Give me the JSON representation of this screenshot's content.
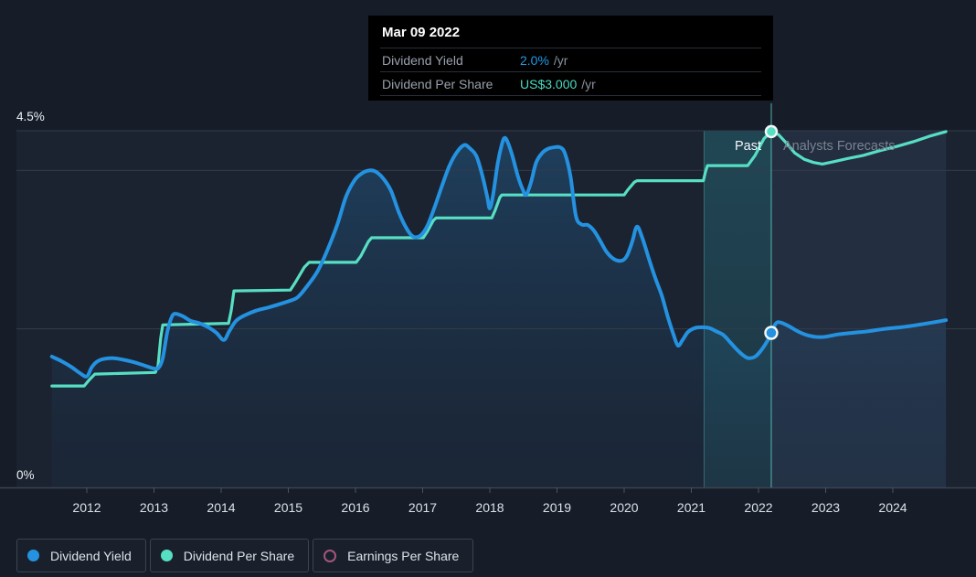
{
  "tooltip": {
    "date": "Mar 09 2022",
    "rows": [
      {
        "label": "Dividend Yield",
        "value": "2.0%",
        "unit": "/yr",
        "color": "#1f9ceb"
      },
      {
        "label": "Dividend Per Share",
        "value": "US$3.000",
        "unit": "/yr",
        "color": "#48dcc2"
      }
    ]
  },
  "axis": {
    "y_top_label": "4.5%",
    "y_bottom_label": "0%",
    "years": [
      2012,
      2013,
      2014,
      2015,
      2016,
      2017,
      2018,
      2019,
      2020,
      2021,
      2022,
      2023,
      2024
    ]
  },
  "annotations": {
    "past_label": "Past",
    "forecast_label": "Analysts Forecasts"
  },
  "legend": {
    "items": [
      {
        "label": "Dividend Yield",
        "color": "#2492e0",
        "style": "filled"
      },
      {
        "label": "Dividend Per Share",
        "color": "#57dfc4",
        "style": "filled"
      },
      {
        "label": "Earnings Per Share",
        "color": "#a3557b",
        "style": "outline"
      }
    ]
  },
  "colors": {
    "background": "#161d29",
    "plot_background": "#1b2331",
    "grid": "#333b49",
    "axis_line": "#3a4250",
    "tick": "#4a5261",
    "year_label": "#dce1e8",
    "dividend_yield": "#2492e0",
    "dividend_per_share": "#57dfc4",
    "earnings_per_share": "#a3557b",
    "tooltip_bg": "#000000",
    "today_line": "rgba(102,226,210,0.5)",
    "band_edge": "rgba(100,220,200,0.35)",
    "forecast_overlay": "rgba(109,160,210,0.10)"
  },
  "chart_data": {
    "type": "line",
    "y_unit": "%",
    "ylim": [
      0,
      4.5
    ],
    "xlim": [
      2011.45,
      2024.85
    ],
    "gridlines_pct": [
      4.5,
      4.0,
      2.0
    ],
    "past_band": {
      "from_year": 2021.19,
      "to_year": 2022.19
    },
    "forecast_from_year": 2022.19,
    "data_end_year": 2024.79,
    "data_start_year": 2011.48,
    "hover": {
      "date": "Mar 09 2022",
      "year": 2022.19,
      "dividend_yield_pct": 2.0,
      "dividend_per_share": "US$3.000 /yr"
    },
    "series": [
      {
        "name": "Dividend Yield",
        "color": "#2492e0",
        "axis": "percent",
        "points": [
          [
            2011.48,
            1.65
          ],
          [
            2011.63,
            1.59
          ],
          [
            2011.77,
            1.52
          ],
          [
            2011.9,
            1.44
          ],
          [
            2012.0,
            1.4
          ],
          [
            2012.07,
            1.51
          ],
          [
            2012.14,
            1.58
          ],
          [
            2012.25,
            1.62
          ],
          [
            2012.4,
            1.63
          ],
          [
            2012.55,
            1.61
          ],
          [
            2012.7,
            1.58
          ],
          [
            2012.85,
            1.54
          ],
          [
            2013.0,
            1.5
          ],
          [
            2013.07,
            1.51
          ],
          [
            2013.13,
            1.63
          ],
          [
            2013.2,
            1.97
          ],
          [
            2013.27,
            2.16
          ],
          [
            2013.33,
            2.19
          ],
          [
            2013.43,
            2.16
          ],
          [
            2013.55,
            2.1
          ],
          [
            2013.68,
            2.07
          ],
          [
            2013.81,
            2.02
          ],
          [
            2013.93,
            1.95
          ],
          [
            2014.04,
            1.86
          ],
          [
            2014.12,
            1.97
          ],
          [
            2014.22,
            2.1
          ],
          [
            2014.35,
            2.17
          ],
          [
            2014.52,
            2.23
          ],
          [
            2014.7,
            2.27
          ],
          [
            2014.86,
            2.31
          ],
          [
            2015.01,
            2.35
          ],
          [
            2015.14,
            2.4
          ],
          [
            2015.28,
            2.54
          ],
          [
            2015.43,
            2.72
          ],
          [
            2015.58,
            2.99
          ],
          [
            2015.73,
            3.32
          ],
          [
            2015.86,
            3.67
          ],
          [
            2015.99,
            3.88
          ],
          [
            2016.11,
            3.97
          ],
          [
            2016.22,
            4.0
          ],
          [
            2016.31,
            3.98
          ],
          [
            2016.42,
            3.89
          ],
          [
            2016.53,
            3.74
          ],
          [
            2016.65,
            3.46
          ],
          [
            2016.78,
            3.24
          ],
          [
            2016.87,
            3.16
          ],
          [
            2016.97,
            3.18
          ],
          [
            2017.07,
            3.3
          ],
          [
            2017.18,
            3.54
          ],
          [
            2017.29,
            3.81
          ],
          [
            2017.4,
            4.06
          ],
          [
            2017.51,
            4.23
          ],
          [
            2017.62,
            4.32
          ],
          [
            2017.7,
            4.28
          ],
          [
            2017.8,
            4.18
          ],
          [
            2017.89,
            3.93
          ],
          [
            2017.96,
            3.67
          ],
          [
            2018.0,
            3.52
          ],
          [
            2018.05,
            3.7
          ],
          [
            2018.12,
            4.1
          ],
          [
            2018.18,
            4.33
          ],
          [
            2018.22,
            4.41
          ],
          [
            2018.27,
            4.35
          ],
          [
            2018.34,
            4.17
          ],
          [
            2018.42,
            3.92
          ],
          [
            2018.49,
            3.76
          ],
          [
            2018.54,
            3.69
          ],
          [
            2018.61,
            3.84
          ],
          [
            2018.69,
            4.1
          ],
          [
            2018.78,
            4.22
          ],
          [
            2018.86,
            4.27
          ],
          [
            2018.95,
            4.29
          ],
          [
            2019.05,
            4.29
          ],
          [
            2019.12,
            4.21
          ],
          [
            2019.2,
            3.93
          ],
          [
            2019.28,
            3.43
          ],
          [
            2019.36,
            3.32
          ],
          [
            2019.46,
            3.31
          ],
          [
            2019.55,
            3.24
          ],
          [
            2019.65,
            3.1
          ],
          [
            2019.74,
            2.97
          ],
          [
            2019.85,
            2.88
          ],
          [
            2019.96,
            2.86
          ],
          [
            2020.04,
            2.92
          ],
          [
            2020.12,
            3.1
          ],
          [
            2020.19,
            3.29
          ],
          [
            2020.27,
            3.15
          ],
          [
            2020.37,
            2.88
          ],
          [
            2020.46,
            2.65
          ],
          [
            2020.56,
            2.42
          ],
          [
            2020.65,
            2.15
          ],
          [
            2020.73,
            1.94
          ],
          [
            2020.8,
            1.79
          ],
          [
            2020.87,
            1.86
          ],
          [
            2020.95,
            1.96
          ],
          [
            2021.05,
            2.01
          ],
          [
            2021.16,
            2.02
          ],
          [
            2021.27,
            2.01
          ],
          [
            2021.37,
            1.97
          ],
          [
            2021.48,
            1.92
          ],
          [
            2021.59,
            1.82
          ],
          [
            2021.7,
            1.72
          ],
          [
            2021.8,
            1.65
          ],
          [
            2021.86,
            1.63
          ],
          [
            2021.95,
            1.65
          ],
          [
            2022.04,
            1.73
          ],
          [
            2022.14,
            1.86
          ],
          [
            2022.19,
            1.95
          ],
          [
            2022.26,
            2.07
          ],
          [
            2022.33,
            2.08
          ],
          [
            2022.44,
            2.04
          ],
          [
            2022.56,
            1.98
          ],
          [
            2022.69,
            1.93
          ],
          [
            2022.84,
            1.9
          ],
          [
            2022.99,
            1.9
          ],
          [
            2023.18,
            1.93
          ],
          [
            2023.4,
            1.95
          ],
          [
            2023.63,
            1.97
          ],
          [
            2023.88,
            2.0
          ],
          [
            2024.12,
            2.02
          ],
          [
            2024.37,
            2.05
          ],
          [
            2024.59,
            2.08
          ],
          [
            2024.79,
            2.11
          ]
        ]
      },
      {
        "name": "Dividend Per Share",
        "color": "#57dfc4",
        "axis": "percent_equivalent",
        "note": "US$ scale hidden; US$3.000/yr at Mar 09 2022",
        "points": [
          [
            2011.48,
            1.28
          ],
          [
            2011.96,
            1.28
          ],
          [
            2012.04,
            1.36
          ],
          [
            2012.12,
            1.43
          ],
          [
            2013.02,
            1.45
          ],
          [
            2013.06,
            1.53
          ],
          [
            2013.1,
            1.88
          ],
          [
            2013.13,
            2.05
          ],
          [
            2014.11,
            2.07
          ],
          [
            2014.15,
            2.23
          ],
          [
            2014.19,
            2.48
          ],
          [
            2015.03,
            2.49
          ],
          [
            2015.1,
            2.58
          ],
          [
            2015.24,
            2.78
          ],
          [
            2015.31,
            2.84
          ],
          [
            2016.01,
            2.84
          ],
          [
            2016.08,
            2.92
          ],
          [
            2016.19,
            3.1
          ],
          [
            2016.24,
            3.15
          ],
          [
            2017.01,
            3.15
          ],
          [
            2017.07,
            3.23
          ],
          [
            2017.16,
            3.37
          ],
          [
            2017.2,
            3.4
          ],
          [
            2018.03,
            3.4
          ],
          [
            2018.08,
            3.5
          ],
          [
            2018.15,
            3.66
          ],
          [
            2018.18,
            3.69
          ],
          [
            2020.0,
            3.69
          ],
          [
            2020.05,
            3.75
          ],
          [
            2020.15,
            3.85
          ],
          [
            2020.19,
            3.87
          ],
          [
            2021.18,
            3.87
          ],
          [
            2021.21,
            3.98
          ],
          [
            2021.24,
            4.06
          ],
          [
            2021.84,
            4.06
          ],
          [
            2021.95,
            4.19
          ],
          [
            2022.08,
            4.4
          ],
          [
            2022.19,
            4.49
          ],
          [
            2022.3,
            4.45
          ],
          [
            2022.41,
            4.35
          ],
          [
            2022.54,
            4.22
          ],
          [
            2022.68,
            4.14
          ],
          [
            2022.82,
            4.1
          ],
          [
            2022.95,
            4.08
          ],
          [
            2023.12,
            4.11
          ],
          [
            2023.33,
            4.15
          ],
          [
            2023.56,
            4.19
          ],
          [
            2023.81,
            4.25
          ],
          [
            2024.05,
            4.3
          ],
          [
            2024.3,
            4.36
          ],
          [
            2024.54,
            4.43
          ],
          [
            2024.79,
            4.49
          ]
        ]
      },
      {
        "name": "Earnings Per Share",
        "color": "#a3557b",
        "points": [],
        "note": "not plotted in view"
      }
    ],
    "markers": [
      {
        "series": 0,
        "year": 2022.19,
        "pct": 1.95
      },
      {
        "series": 1,
        "year": 2022.19,
        "pct": 4.49
      }
    ]
  }
}
